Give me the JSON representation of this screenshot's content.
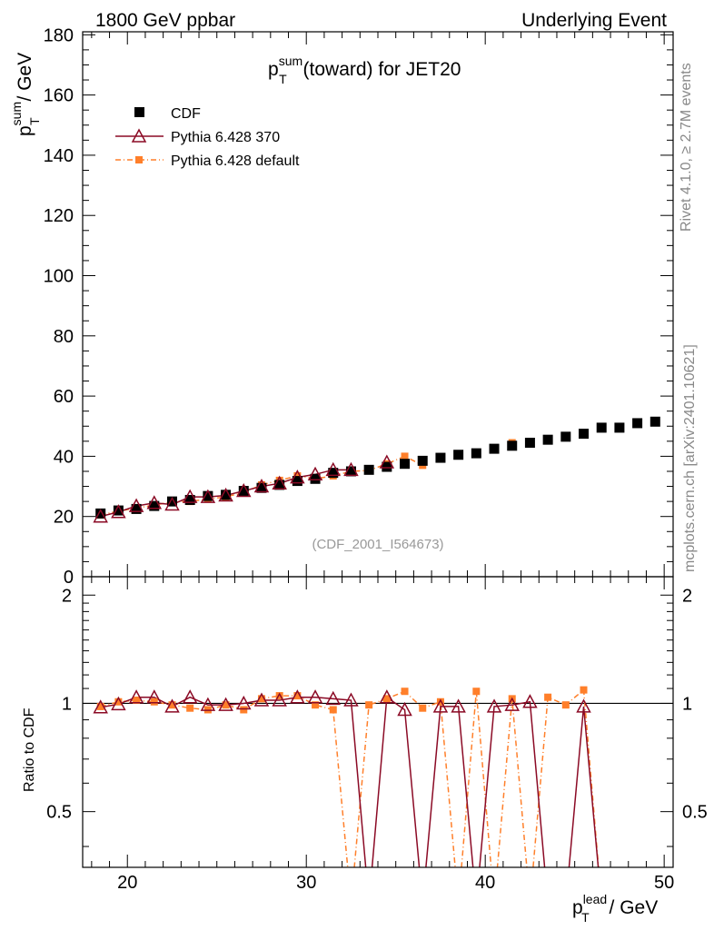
{
  "header": {
    "left": "1800 GeV ppbar",
    "right": "Underlying Event"
  },
  "side_labels": {
    "rivet": "Rivet 4.1.0, ≥ 2.7M events",
    "mcplots": "mcplots.cern.ch [arXiv:2401.10621]"
  },
  "chart_data": {
    "type": "line",
    "title": {
      "main": "p",
      "sup": "sum",
      "sub": "T",
      "rest": " (toward) for JET20"
    },
    "watermark": "(CDF_2001_I564673)",
    "xaxis": {
      "label_main": "p",
      "label_sup": "lead",
      "label_sub": "T",
      "label_rest": " / GeV",
      "range": [
        17.5,
        50.5
      ],
      "ticks": [
        20,
        30,
        40,
        50
      ]
    },
    "yaxis_main": {
      "label_main": "p",
      "label_sup": "sum",
      "label_sub": "T",
      "label_rest": " / GeV",
      "range": [
        0,
        181
      ],
      "ticks": [
        0,
        20,
        40,
        60,
        80,
        100,
        120,
        140,
        160,
        180
      ]
    },
    "yaxis_ratio": {
      "label": "Ratio to CDF",
      "range": [
        0.35,
        2.25
      ],
      "ticks": [
        0.5,
        1,
        2
      ],
      "tick_labels": [
        "0.5",
        "1",
        "2"
      ]
    },
    "legend": [
      "CDF",
      "Pythia 6.428 370",
      "Pythia 6.428 default"
    ],
    "x": [
      18.5,
      19.5,
      20.5,
      21.5,
      22.5,
      23.5,
      24.5,
      25.5,
      26.5,
      27.5,
      28.5,
      29.5,
      30.5,
      31.5,
      32.5,
      33.5,
      34.5,
      35.5,
      36.5,
      37.5,
      38.5,
      39.5,
      40.5,
      41.5,
      42.5,
      43.5,
      44.5,
      45.5,
      46.5,
      47.5,
      48.5,
      49.5
    ],
    "series": [
      {
        "name": "CDF",
        "color": "#000000",
        "values": [
          21.0,
          22.0,
          22.5,
          23.5,
          25.0,
          25.5,
          26.8,
          27.2,
          28.5,
          29.5,
          30.5,
          31.8,
          32.5,
          34.5,
          35.0,
          35.5,
          36.5,
          37.5,
          38.5,
          39.5,
          40.5,
          41.0,
          42.5,
          43.5,
          44.5,
          45.5,
          46.5,
          47.5,
          49.5,
          49.5,
          51.0,
          51.5
        ]
      },
      {
        "name": "Pythia 6.428 370",
        "color": "#8b0a25",
        "values": [
          20.0,
          21.5,
          23.5,
          24.5,
          24.0,
          26.5,
          26.5,
          27.0,
          28.5,
          30.0,
          31.0,
          33.0,
          34.0,
          35.5,
          35.5,
          null,
          38.0,
          null,
          null,
          null,
          null,
          null,
          null,
          null,
          null,
          null,
          null,
          null,
          null,
          null,
          null,
          null
        ],
        "ratio": [
          0.975,
          0.995,
          1.04,
          1.04,
          0.98,
          1.04,
          0.99,
          0.99,
          1.0,
          1.02,
          1.02,
          1.04,
          1.04,
          1.03,
          1.02,
          0.0,
          1.04,
          0.96,
          0.0,
          0.98,
          0.98,
          0.0,
          0.98,
          0.99,
          1.01,
          0.0,
          0.0,
          0.98,
          0.0,
          null,
          null,
          null
        ]
      },
      {
        "name": "Pythia 6.428 default",
        "color": "#ff7f2a",
        "values": [
          20.5,
          21.8,
          22.8,
          23.8,
          24.8,
          25.0,
          25.8,
          26.5,
          28.0,
          30.5,
          32.0,
          33.5,
          32.5,
          33.5,
          35.0,
          35.3,
          37.5,
          40.0,
          37.0,
          null,
          null,
          null,
          null,
          44.5,
          null,
          null,
          null,
          null,
          null,
          null,
          null,
          null
        ],
        "ratio": [
          0.98,
          1.01,
          1.02,
          1.01,
          0.99,
          0.97,
          0.96,
          0.99,
          0.96,
          1.03,
          1.05,
          1.05,
          0.99,
          0.96,
          0.0,
          0.99,
          1.03,
          1.08,
          0.97,
          1.01,
          0.0,
          1.08,
          0.0,
          1.03,
          0.0,
          1.04,
          0.99,
          1.09,
          0.0,
          null,
          null,
          null
        ]
      }
    ]
  }
}
